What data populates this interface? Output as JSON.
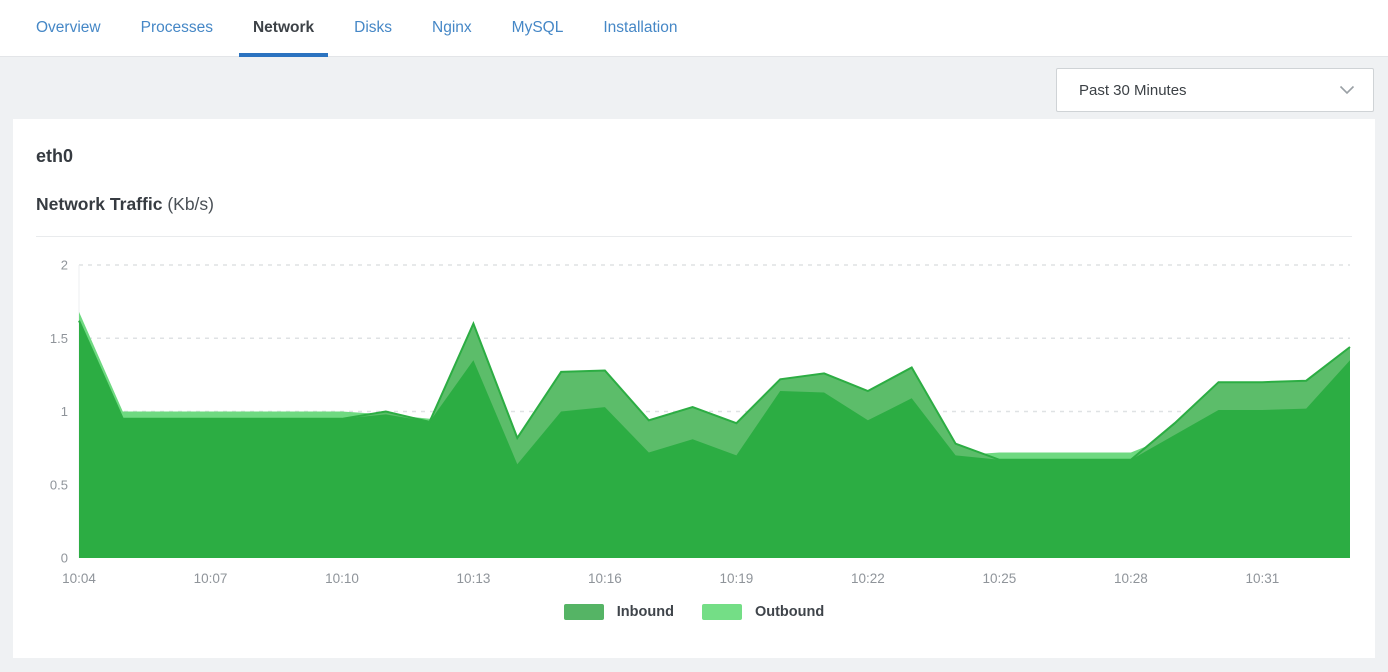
{
  "header": {
    "tabs": [
      {
        "label": "Overview",
        "active": false
      },
      {
        "label": "Processes",
        "active": false
      },
      {
        "label": "Network",
        "active": true
      },
      {
        "label": "Disks",
        "active": false
      },
      {
        "label": "Nginx",
        "active": false
      },
      {
        "label": "MySQL",
        "active": false
      },
      {
        "label": "Installation",
        "active": false
      }
    ],
    "active_tab_underline_color": "#2b73c0",
    "tab_link_color": "#4587c6"
  },
  "toolbar": {
    "time_range": {
      "value": "Past 30 Minutes"
    }
  },
  "card": {
    "interface_name": "eth0",
    "chart_title": "Network Traffic",
    "chart_title_unit": "(Kb/s)"
  },
  "chart_data": {
    "type": "area",
    "title": "Network Traffic (Kb/s)",
    "ylabel": "Kb/s",
    "ylim": [
      0,
      2
    ],
    "yticks": [
      0,
      0.5,
      1,
      1.5,
      2
    ],
    "grid": "horizontal-dashed",
    "legend_position": "bottom-center",
    "x": [
      "10:04",
      "10:05",
      "10:06",
      "10:07",
      "10:08",
      "10:09",
      "10:10",
      "10:11",
      "10:12",
      "10:13",
      "10:14",
      "10:15",
      "10:16",
      "10:17",
      "10:18",
      "10:19",
      "10:20",
      "10:21",
      "10:22",
      "10:23",
      "10:24",
      "10:25",
      "10:26",
      "10:27",
      "10:28",
      "10:29",
      "10:30",
      "10:31",
      "10:32",
      "10:33"
    ],
    "xtick_labels": [
      "10:04",
      "10:07",
      "10:10",
      "10:13",
      "10:16",
      "10:19",
      "10:22",
      "10:25",
      "10:28",
      "10:31"
    ],
    "series": [
      {
        "name": "Inbound",
        "color": "#5cbd6a",
        "overlap_color": "#2cad43",
        "legend_color": "#55b465",
        "values": [
          1.62,
          0.95,
          0.95,
          0.95,
          0.95,
          0.95,
          0.95,
          1.0,
          0.93,
          1.6,
          0.82,
          1.27,
          1.28,
          0.94,
          1.03,
          0.92,
          1.22,
          1.26,
          1.14,
          1.3,
          0.78,
          0.67,
          0.67,
          0.67,
          0.67,
          0.92,
          1.2,
          1.2,
          1.21,
          1.44
        ]
      },
      {
        "name": "Outbound",
        "color": "#6fd981",
        "legend_color": "#74de86",
        "values": [
          1.68,
          1.0,
          1.0,
          1.0,
          1.0,
          1.0,
          1.0,
          0.98,
          0.95,
          1.35,
          0.64,
          1.0,
          1.03,
          0.72,
          0.81,
          0.7,
          1.14,
          1.13,
          0.94,
          1.09,
          0.7,
          0.72,
          0.72,
          0.72,
          0.72,
          0.84,
          1.01,
          1.01,
          1.02,
          1.35
        ]
      }
    ],
    "axis_text_color": "#8f949a",
    "gridline_color": "#dfe2e4"
  }
}
